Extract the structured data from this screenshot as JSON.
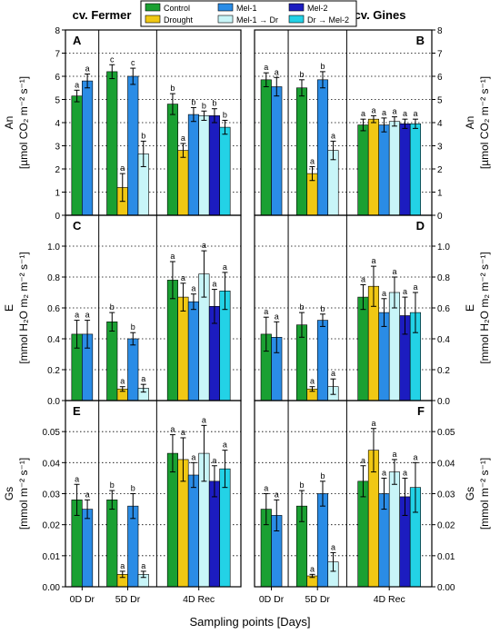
{
  "figure": {
    "cultivar_left": "cv. Fermer",
    "cultivar_right": "cv. Gines",
    "xlabel": "Sampling points [Days]",
    "legend": [
      {
        "name": "Control",
        "color": "#1aa032"
      },
      {
        "name": "Drought",
        "color": "#f0c814"
      },
      {
        "name": "Mel-1",
        "color": "#2a8ce6"
      },
      {
        "name": "Mel-1 → Dr",
        "color": "#c8f5f8"
      },
      {
        "name": "Mel-2",
        "color": "#1c1cc0"
      },
      {
        "name": "Dr → Mel-2",
        "color": "#23d2e6"
      }
    ],
    "rows": [
      {
        "ylabel_lines": [
          "An",
          "[µmol CO₂ m⁻² s⁻¹]"
        ],
        "ylim": [
          0,
          8
        ],
        "ticks": [
          "0",
          "1",
          "2",
          "3",
          "4",
          "5",
          "6",
          "7",
          "8"
        ]
      },
      {
        "ylabel_lines": [
          "E",
          "[mmol H₂O m₂ m⁻² s⁻¹]"
        ],
        "ylim": [
          0,
          1.2
        ],
        "ticks": [
          "0.0",
          "0.2",
          "0.4",
          "0.6",
          "0.8",
          "1.0"
        ]
      },
      {
        "ylabel_lines": [
          "Gs",
          "[mmol m⁻² s⁻¹]"
        ],
        "ylim": [
          0,
          0.06
        ],
        "ticks": [
          "0.00",
          "0.01",
          "0.02",
          "0.03",
          "0.04",
          "0.05"
        ]
      }
    ]
  },
  "chart_data": [
    {
      "panel": "A",
      "type": "bar",
      "categories": [
        "0D Dr",
        "5D Dr",
        "4D Rec"
      ],
      "ylim": [
        0,
        8
      ],
      "grid": true,
      "groups": [
        [
          {
            "s": "Control",
            "v": 5.15,
            "e": 0.25,
            "l": "a"
          },
          {
            "s": "Mel-1",
            "v": 5.8,
            "e": 0.3,
            "l": "a"
          }
        ],
        [
          {
            "s": "Control",
            "v": 6.2,
            "e": 0.3,
            "l": "c"
          },
          {
            "s": "Drought",
            "v": 1.2,
            "e": 0.6,
            "l": "a"
          },
          {
            "s": "Mel-1",
            "v": 6.0,
            "e": 0.35,
            "l": "c"
          },
          {
            "s": "Mel-1 → Dr",
            "v": 2.65,
            "e": 0.55,
            "l": "b"
          }
        ],
        [
          {
            "s": "Control",
            "v": 4.8,
            "e": 0.45,
            "l": "b"
          },
          {
            "s": "Drought",
            "v": 2.8,
            "e": 0.3,
            "l": "a"
          },
          {
            "s": "Mel-1",
            "v": 4.35,
            "e": 0.3,
            "l": "b"
          },
          {
            "s": "Mel-1 → Dr",
            "v": 4.3,
            "e": 0.2,
            "l": "b"
          },
          {
            "s": "Mel-2",
            "v": 4.3,
            "e": 0.3,
            "l": "b"
          },
          {
            "s": "Dr → Mel-2",
            "v": 3.8,
            "e": 0.3,
            "l": "b"
          }
        ]
      ]
    },
    {
      "panel": "B",
      "type": "bar",
      "categories": [
        "0D Dr",
        "5D Dr",
        "4D Rec"
      ],
      "ylim": [
        0,
        8
      ],
      "grid": true,
      "groups": [
        [
          {
            "s": "Control",
            "v": 5.85,
            "e": 0.3,
            "l": "a"
          },
          {
            "s": "Mel-1",
            "v": 5.55,
            "e": 0.4,
            "l": "a"
          }
        ],
        [
          {
            "s": "Control",
            "v": 5.5,
            "e": 0.35,
            "l": "b"
          },
          {
            "s": "Drought",
            "v": 1.8,
            "e": 0.3,
            "l": "a"
          },
          {
            "s": "Mel-1",
            "v": 5.85,
            "e": 0.35,
            "l": "b"
          },
          {
            "s": "Mel-1 → Dr",
            "v": 2.8,
            "e": 0.4,
            "l": "a"
          }
        ],
        [
          {
            "s": "Control",
            "v": 3.9,
            "e": 0.25,
            "l": "a"
          },
          {
            "s": "Drought",
            "v": 4.15,
            "e": 0.15,
            "l": "a"
          },
          {
            "s": "Mel-1",
            "v": 3.9,
            "e": 0.3,
            "l": "a"
          },
          {
            "s": "Mel-1 → Dr",
            "v": 4.05,
            "e": 0.2,
            "l": "a"
          },
          {
            "s": "Mel-2",
            "v": 3.95,
            "e": 0.2,
            "l": "a"
          },
          {
            "s": "Dr → Mel-2",
            "v": 3.95,
            "e": 0.2,
            "l": "a"
          }
        ]
      ]
    },
    {
      "panel": "C",
      "type": "bar",
      "categories": [
        "0D Dr",
        "5D Dr",
        "4D Rec"
      ],
      "ylim": [
        0,
        1.2
      ],
      "grid": true,
      "groups": [
        [
          {
            "s": "Control",
            "v": 0.43,
            "e": 0.09,
            "l": "a"
          },
          {
            "s": "Mel-1",
            "v": 0.43,
            "e": 0.09,
            "l": "a"
          }
        ],
        [
          {
            "s": "Control",
            "v": 0.51,
            "e": 0.06,
            "l": "b"
          },
          {
            "s": "Drought",
            "v": 0.075,
            "e": 0.015,
            "l": "a"
          },
          {
            "s": "Mel-1",
            "v": 0.4,
            "e": 0.04,
            "l": "b"
          },
          {
            "s": "Mel-1 → Dr",
            "v": 0.08,
            "e": 0.025,
            "l": "a"
          }
        ],
        [
          {
            "s": "Control",
            "v": 0.78,
            "e": 0.12,
            "l": "a"
          },
          {
            "s": "Drought",
            "v": 0.67,
            "e": 0.09,
            "l": "a"
          },
          {
            "s": "Mel-1",
            "v": 0.64,
            "e": 0.05,
            "l": "a"
          },
          {
            "s": "Mel-1 → Dr",
            "v": 0.82,
            "e": 0.15,
            "l": "a"
          },
          {
            "s": "Mel-2",
            "v": 0.61,
            "e": 0.11,
            "l": "a"
          },
          {
            "s": "Dr → Mel-2",
            "v": 0.71,
            "e": 0.12,
            "l": "a"
          }
        ]
      ]
    },
    {
      "panel": "D",
      "type": "bar",
      "categories": [
        "0D Dr",
        "5D Dr",
        "4D Rec"
      ],
      "ylim": [
        0,
        1.2
      ],
      "grid": true,
      "groups": [
        [
          {
            "s": "Control",
            "v": 0.43,
            "e": 0.11,
            "l": "a"
          },
          {
            "s": "Mel-1",
            "v": 0.41,
            "e": 0.1,
            "l": "a"
          }
        ],
        [
          {
            "s": "Control",
            "v": 0.49,
            "e": 0.08,
            "l": "b"
          },
          {
            "s": "Drought",
            "v": 0.075,
            "e": 0.015,
            "l": "a"
          },
          {
            "s": "Mel-1",
            "v": 0.52,
            "e": 0.04,
            "l": "b"
          },
          {
            "s": "Mel-1 → Dr",
            "v": 0.09,
            "e": 0.05,
            "l": "a"
          }
        ],
        [
          {
            "s": "Control",
            "v": 0.67,
            "e": 0.08,
            "l": "a"
          },
          {
            "s": "Drought",
            "v": 0.74,
            "e": 0.13,
            "l": "a"
          },
          {
            "s": "Mel-1",
            "v": 0.57,
            "e": 0.09,
            "l": "a"
          },
          {
            "s": "Mel-1 → Dr",
            "v": 0.7,
            "e": 0.1,
            "l": "a"
          },
          {
            "s": "Mel-2",
            "v": 0.55,
            "e": 0.12,
            "l": "a"
          },
          {
            "s": "Dr → Mel-2",
            "v": 0.57,
            "e": 0.13,
            "l": "a"
          }
        ]
      ]
    },
    {
      "panel": "E",
      "type": "bar",
      "categories": [
        "0D Dr",
        "5D Dr",
        "4D Rec"
      ],
      "ylim": [
        0,
        0.06
      ],
      "grid": true,
      "groups": [
        [
          {
            "s": "Control",
            "v": 0.028,
            "e": 0.005,
            "l": "a"
          },
          {
            "s": "Mel-1",
            "v": 0.025,
            "e": 0.003,
            "l": "a"
          }
        ],
        [
          {
            "s": "Control",
            "v": 0.028,
            "e": 0.003,
            "l": "b"
          },
          {
            "s": "Drought",
            "v": 0.004,
            "e": 0.001,
            "l": "a"
          },
          {
            "s": "Mel-1",
            "v": 0.026,
            "e": 0.004,
            "l": "b"
          },
          {
            "s": "Mel-1 → Dr",
            "v": 0.004,
            "e": 0.001,
            "l": "a"
          }
        ],
        [
          {
            "s": "Control",
            "v": 0.043,
            "e": 0.006,
            "l": "a"
          },
          {
            "s": "Drought",
            "v": 0.041,
            "e": 0.007,
            "l": "a"
          },
          {
            "s": "Mel-1",
            "v": 0.036,
            "e": 0.004,
            "l": "a"
          },
          {
            "s": "Mel-1 → Dr",
            "v": 0.043,
            "e": 0.009,
            "l": "a"
          },
          {
            "s": "Mel-2",
            "v": 0.034,
            "e": 0.005,
            "l": "a"
          },
          {
            "s": "Dr → Mel-2",
            "v": 0.038,
            "e": 0.006,
            "l": "a"
          }
        ]
      ]
    },
    {
      "panel": "F",
      "type": "bar",
      "categories": [
        "0D Dr",
        "5D Dr",
        "4D Rec"
      ],
      "ylim": [
        0,
        0.06
      ],
      "grid": true,
      "groups": [
        [
          {
            "s": "Control",
            "v": 0.025,
            "e": 0.005,
            "l": "a"
          },
          {
            "s": "Mel-1",
            "v": 0.023,
            "e": 0.005,
            "l": "a"
          }
        ],
        [
          {
            "s": "Control",
            "v": 0.026,
            "e": 0.005,
            "l": "b"
          },
          {
            "s": "Drought",
            "v": 0.0035,
            "e": 0.0005,
            "l": "a"
          },
          {
            "s": "Mel-1",
            "v": 0.03,
            "e": 0.004,
            "l": "b"
          },
          {
            "s": "Mel-1 → Dr",
            "v": 0.008,
            "e": 0.003,
            "l": "a"
          }
        ],
        [
          {
            "s": "Control",
            "v": 0.034,
            "e": 0.005,
            "l": "a"
          },
          {
            "s": "Drought",
            "v": 0.044,
            "e": 0.007,
            "l": "a"
          },
          {
            "s": "Mel-1",
            "v": 0.03,
            "e": 0.005,
            "l": "a"
          },
          {
            "s": "Mel-1 → Dr",
            "v": 0.037,
            "e": 0.004,
            "l": "a"
          },
          {
            "s": "Mel-2",
            "v": 0.029,
            "e": 0.006,
            "l": "a"
          },
          {
            "s": "Dr → Mel-2",
            "v": 0.032,
            "e": 0.008,
            "l": "a"
          }
        ]
      ]
    }
  ]
}
